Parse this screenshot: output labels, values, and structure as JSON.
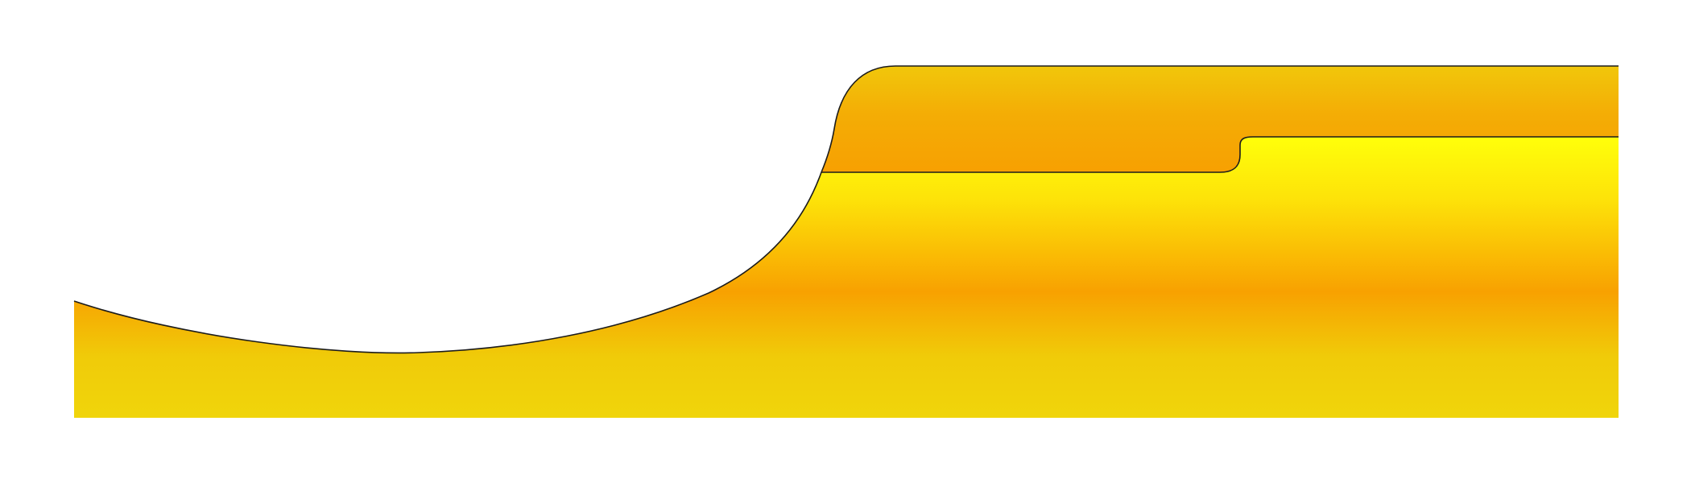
{
  "canvas": {
    "background": "#ffffff"
  },
  "shapes": {
    "lower_body": {
      "gradient_stops": [
        "#ffff0a",
        "#fde309",
        "#f8a101",
        "#f0cb09",
        "#f0d50b"
      ]
    },
    "upper_tab": {
      "gradient_stops": [
        "#f1c70b",
        "#f4ad05",
        "#f7a002"
      ]
    },
    "outline_color": "#1b1b1b"
  }
}
